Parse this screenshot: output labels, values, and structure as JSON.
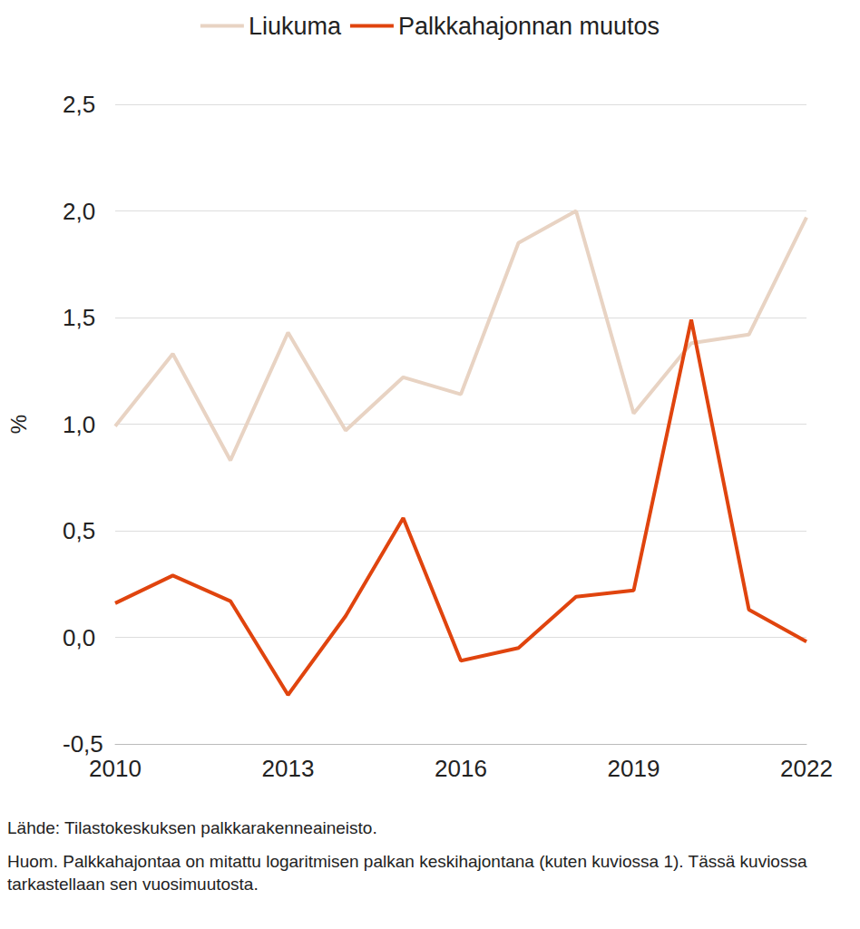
{
  "chart_data": {
    "type": "line",
    "x": [
      2010,
      2011,
      2012,
      2013,
      2014,
      2015,
      2016,
      2017,
      2018,
      2019,
      2020,
      2021,
      2022
    ],
    "series": [
      {
        "name": "Liukuma",
        "color": "#e8d3c3",
        "values": [
          0.99,
          1.33,
          0.83,
          1.43,
          0.97,
          1.22,
          1.14,
          1.85,
          2.0,
          1.05,
          1.38,
          1.42,
          1.97
        ]
      },
      {
        "name": "Palkkahajonnan muutos",
        "color": "#e0440e",
        "values": [
          0.16,
          0.29,
          0.17,
          -0.27,
          0.1,
          0.56,
          -0.11,
          -0.05,
          0.19,
          0.22,
          1.49,
          0.13,
          -0.02
        ]
      }
    ],
    "y_label": "%",
    "xlim": [
      2010,
      2022
    ],
    "xticks": [
      2010,
      2013,
      2016,
      2019,
      2022
    ],
    "ylim": [
      -0.5,
      2.5
    ],
    "yticks": [
      {
        "value": -0.5,
        "label": "-0,5"
      },
      {
        "value": 0,
        "label": "0,0"
      },
      {
        "value": 0.5,
        "label": "0,5"
      },
      {
        "value": 1,
        "label": "1,0"
      },
      {
        "value": 1.5,
        "label": "1,5"
      },
      {
        "value": 2,
        "label": "2,0"
      },
      {
        "value": 2.5,
        "label": "2,5"
      }
    ],
    "grid": true,
    "legend": "top",
    "source": "Lähde: Tilastokeskuksen palkkarakenneaineisto.",
    "note": "Huom. Palkkahajontaa on mitattu logaritmisen palkan keskihajontana (kuten kuviossa 1). Tässä kuviossa tarkastellaan sen vuosimuutosta."
  }
}
